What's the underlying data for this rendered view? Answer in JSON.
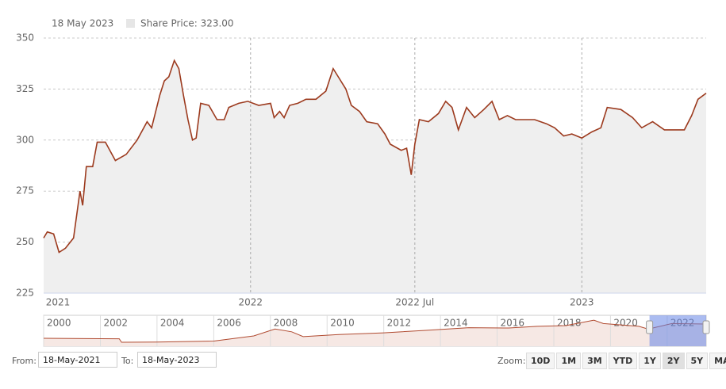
{
  "tooltip": {
    "date": "18 May 2023",
    "text": "Share Price: 323.00"
  },
  "chart_data": [
    {
      "type": "area",
      "color": "#9c3a1e",
      "fill": "#efefef",
      "x": [
        "2021-05-18",
        "2021-05-22",
        "2021-05-29",
        "2021-06-04",
        "2021-06-11",
        "2021-06-20",
        "2021-06-27",
        "2021-06-30",
        "2021-07-04",
        "2021-07-11",
        "2021-07-16",
        "2021-07-25",
        "2021-08-05",
        "2021-08-17",
        "2021-08-29",
        "2021-09-09",
        "2021-09-14",
        "2021-09-23",
        "2021-09-28",
        "2021-10-03",
        "2021-10-09",
        "2021-10-14",
        "2021-10-19",
        "2021-10-24",
        "2021-10-29",
        "2021-11-02",
        "2021-11-07",
        "2021-11-16",
        "2021-11-25",
        "2021-12-03",
        "2021-12-08",
        "2021-12-19",
        "2021-12-29",
        "2022-01-10",
        "2022-01-23",
        "2022-01-27",
        "2022-02-02",
        "2022-02-07",
        "2022-02-13",
        "2022-02-22",
        "2022-03-03",
        "2022-03-14",
        "2022-03-25",
        "2022-04-02",
        "2022-04-09",
        "2022-04-16",
        "2022-04-22",
        "2022-05-01",
        "2022-05-09",
        "2022-05-21",
        "2022-05-29",
        "2022-06-04",
        "2022-06-16",
        "2022-06-22",
        "2022-06-27",
        "2022-07-01",
        "2022-07-06",
        "2022-07-16",
        "2022-07-27",
        "2022-08-04",
        "2022-08-11",
        "2022-08-18",
        "2022-08-27",
        "2022-09-05",
        "2022-09-15",
        "2022-09-24",
        "2022-10-02",
        "2022-10-11",
        "2022-10-20",
        "2022-10-30",
        "2022-11-10",
        "2022-11-23",
        "2022-12-02",
        "2022-12-12",
        "2022-12-21",
        "2023-01-01",
        "2023-01-12",
        "2023-01-22",
        "2023-01-29",
        "2023-02-13",
        "2023-02-26",
        "2023-03-08",
        "2023-03-20",
        "2023-04-02",
        "2023-04-24",
        "2023-05-02",
        "2023-05-09",
        "2023-05-18"
      ],
      "values": [
        252,
        255,
        254,
        245,
        247,
        252,
        275,
        268,
        287,
        287,
        299,
        299,
        290,
        293,
        300,
        309,
        306,
        322,
        329,
        331,
        339,
        335,
        322,
        310,
        300,
        301,
        318,
        317,
        310,
        310,
        316,
        318,
        319,
        317,
        318,
        311,
        314,
        311,
        317,
        318,
        320,
        320,
        324,
        335,
        330,
        325,
        317,
        314,
        309,
        308,
        303,
        298,
        295,
        296,
        283,
        298,
        310,
        309,
        313,
        319,
        316,
        305,
        316,
        311,
        315,
        319,
        310,
        312,
        310,
        310,
        310,
        308,
        306,
        302,
        303,
        301,
        304,
        306,
        316,
        315,
        311,
        306,
        309,
        305,
        305,
        312,
        320,
        323
      ],
      "xlim": [
        "2021-05-18",
        "2023-05-18"
      ],
      "xticks": [
        {
          "value": "2021-05-18",
          "label": "2021"
        },
        {
          "value": "2022-01-01",
          "label": "2022"
        },
        {
          "value": "2022-07-01",
          "label": "2022 Jul"
        },
        {
          "value": "2023-01-01",
          "label": "2023"
        }
      ],
      "ylim": [
        225,
        350
      ],
      "yticks": [
        225,
        250,
        275,
        300,
        325,
        350
      ],
      "grid": true
    },
    {
      "type": "area",
      "color": "#b04a30",
      "fill": "#f6e8e4",
      "x": [
        "2000-01-01",
        "2001-01-01",
        "2002-01-01",
        "2002-09-01",
        "2002-10-01",
        "2004-01-01",
        "2006-01-01",
        "2007-06-01",
        "2008-03-01",
        "2008-10-01",
        "2009-03-01",
        "2010-06-01",
        "2012-01-01",
        "2013-06-01",
        "2015-01-01",
        "2016-06-01",
        "2017-06-01",
        "2018-06-01",
        "2019-06-01",
        "2019-10-01",
        "2021-01-01",
        "2021-05-01",
        "2022-03-01",
        "2023-05-18"
      ],
      "values": [
        115,
        112,
        110,
        108,
        58,
        60,
        75,
        150,
        250,
        210,
        140,
        170,
        195,
        230,
        270,
        265,
        290,
        300,
        380,
        330,
        290,
        250,
        330,
        323
      ],
      "xlim": [
        "2000-01-01",
        "2023-05-18"
      ],
      "xticks": [
        {
          "value": "2000-01-01",
          "label": "2000"
        },
        {
          "value": "2002-01-01",
          "label": "2002"
        },
        {
          "value": "2004-01-01",
          "label": "2004"
        },
        {
          "value": "2006-01-01",
          "label": "2006"
        },
        {
          "value": "2008-01-01",
          "label": "2008"
        },
        {
          "value": "2010-01-01",
          "label": "2010"
        },
        {
          "value": "2012-01-01",
          "label": "2012"
        },
        {
          "value": "2014-01-01",
          "label": "2014"
        },
        {
          "value": "2016-01-01",
          "label": "2016"
        },
        {
          "value": "2018-01-01",
          "label": "2018"
        },
        {
          "value": "2020-01-01",
          "label": "2020"
        },
        {
          "value": "2022-01-01",
          "label": "2022"
        }
      ],
      "ylim": [
        0,
        450
      ]
    }
  ],
  "range_selector": {
    "from_label": "From:",
    "from": "18-May-2021",
    "to_label": "To:",
    "to": "18-May-2023",
    "zoom_label": "Zoom:",
    "buttons": [
      "10D",
      "1M",
      "3M",
      "YTD",
      "1Y",
      "2Y",
      "5Y",
      "MAX"
    ],
    "selected": "2Y"
  }
}
